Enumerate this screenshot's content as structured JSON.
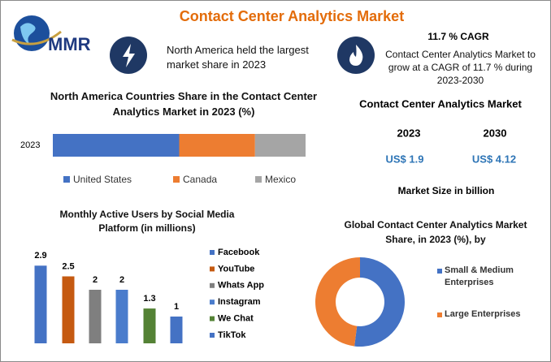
{
  "title": "Contact Center Analytics Market",
  "logo_text": "MMR",
  "highlight": "North America held the largest market share in 2023",
  "cagr": {
    "title": "11.7 % CAGR",
    "text": "Contact Center Analytics Market to grow at a CAGR of 11.7 % during 2023-2030"
  },
  "market_size": {
    "title": "Contact Center Analytics Market",
    "years": [
      "2023",
      "2030"
    ],
    "values": [
      "US$ 1.9",
      "US$ 4.12"
    ],
    "note": "Market Size in billion"
  },
  "chart_data": [
    {
      "type": "stacked_bar",
      "title": "North America Countries Share in the  Contact Center Analytics Market  in 2023 (%)",
      "categories": [
        "2023"
      ],
      "xlim": [
        0,
        100
      ],
      "series": [
        {
          "name": "United States",
          "color": "#4472c4",
          "values": [
            50
          ]
        },
        {
          "name": "Canada",
          "color": "#ed7d31",
          "values": [
            30
          ]
        },
        {
          "name": "Mexico",
          "color": "#a5a5a5",
          "values": [
            20
          ]
        }
      ]
    },
    {
      "type": "bar",
      "title": "Monthly Active Users by Social Media Platform (in millions)",
      "categories": [
        "Facebook",
        "YouTube",
        "Whats App",
        "Instagram",
        "We Chat",
        "TikTok"
      ],
      "values": [
        2.9,
        2.5,
        2,
        2,
        1.3,
        1
      ],
      "colors": [
        "#4472c4",
        "#c55a11",
        "#7f7f7f",
        "#4a7ccc",
        "#548235",
        "#4472c4"
      ],
      "ylim": [
        0,
        3
      ]
    },
    {
      "type": "donut",
      "title": "Global Contact Center Analytics Market Share, in 2023 (%), by",
      "categories": [
        "Small & Medium Enterprises",
        "Large Enterprises"
      ],
      "values": [
        52,
        48
      ],
      "colors": [
        "#4472c4",
        "#ed7d31"
      ]
    }
  ]
}
